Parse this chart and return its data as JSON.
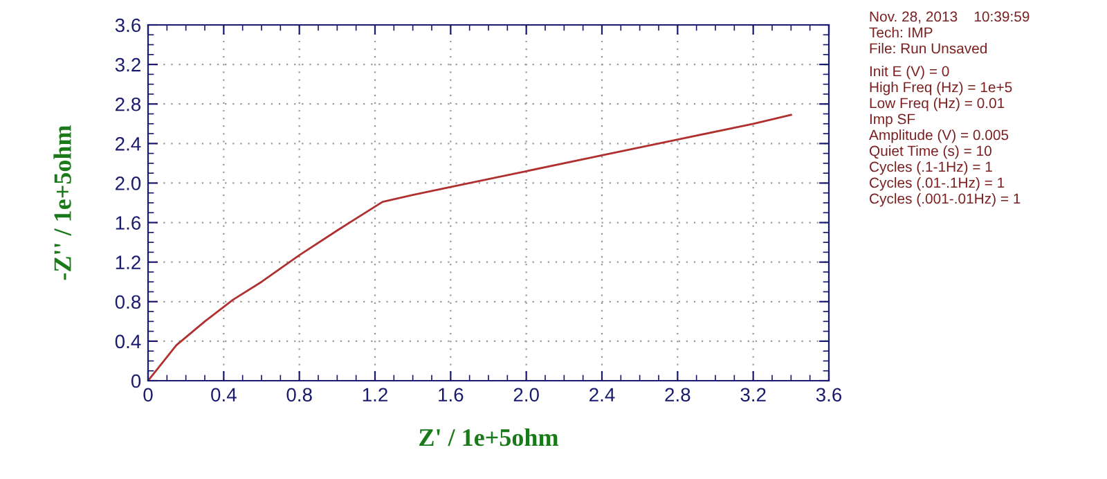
{
  "chart_data": {
    "type": "line",
    "xlabel": "Z' / 1e+5ohm",
    "ylabel": "-Z'' / 1e+5ohm",
    "x": [
      0,
      0.05,
      0.15,
      0.3,
      0.45,
      0.6,
      0.8,
      1.0,
      1.24,
      1.4,
      1.6,
      2.0,
      2.4,
      2.8,
      3.2,
      3.4
    ],
    "series": [
      {
        "color": "#b03030",
        "values": [
          0,
          0.12,
          0.36,
          0.6,
          0.82,
          1.0,
          1.27,
          1.52,
          1.81,
          1.88,
          1.96,
          2.12,
          2.28,
          2.44,
          2.6,
          2.69
        ]
      }
    ],
    "xlim": [
      0,
      3.6
    ],
    "xticks": [
      0,
      0.4,
      0.8,
      1.2,
      1.6,
      {
        "value": 2,
        "label": "2.0"
      },
      2.4,
      2.8,
      3.2,
      3.6
    ],
    "ylim": [
      0,
      3.6
    ],
    "yticks": [
      0,
      0.4,
      0.8,
      1.2,
      1.6,
      {
        "value": 2,
        "label": "2.0"
      },
      2.4,
      2.8,
      3.2,
      3.6
    ],
    "grid": true,
    "marker": "none",
    "line_style": "solid",
    "legend": false,
    "annotations": [
      "Nov. 28, 2013    10:39:59",
      "Tech: IMP",
      "File: Run Unsaved",
      "Init E (V) = 0",
      "High Freq (Hz) = 1e+5",
      "Low Freq (Hz) = 0.01",
      "Imp SF",
      "Amplitude (V) = 0.005",
      "Quiet Time (s) = 10",
      "Cycles (.1-1Hz) = 1",
      "Cycles (.01-.1Hz) = 1",
      "Cycles (.001-.01Hz) = 1"
    ]
  }
}
